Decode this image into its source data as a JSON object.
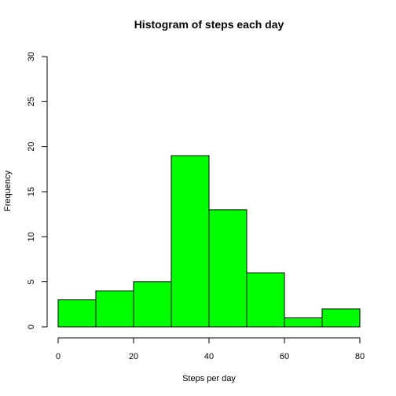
{
  "chart_data": {
    "type": "bar",
    "title": "Histogram of steps each day",
    "xlabel": "Steps per day",
    "ylabel": "Frequency",
    "bins": [
      {
        "from": 0,
        "to": 10,
        "count": 3
      },
      {
        "from": 10,
        "to": 20,
        "count": 4
      },
      {
        "from": 20,
        "to": 30,
        "count": 5
      },
      {
        "from": 30,
        "to": 40,
        "count": 19
      },
      {
        "from": 40,
        "to": 50,
        "count": 13
      },
      {
        "from": 50,
        "to": 60,
        "count": 6
      },
      {
        "from": 60,
        "to": 70,
        "count": 1
      },
      {
        "from": 70,
        "to": 80,
        "count": 2
      }
    ],
    "xlim": [
      0,
      80
    ],
    "ylim": [
      0,
      30
    ],
    "xticks": [
      "0",
      "20",
      "40",
      "60",
      "80"
    ],
    "yticks": [
      "0",
      "5",
      "10",
      "15",
      "20",
      "25",
      "30"
    ],
    "bar_color": "#00ff00",
    "grid": false,
    "legend": "none"
  }
}
